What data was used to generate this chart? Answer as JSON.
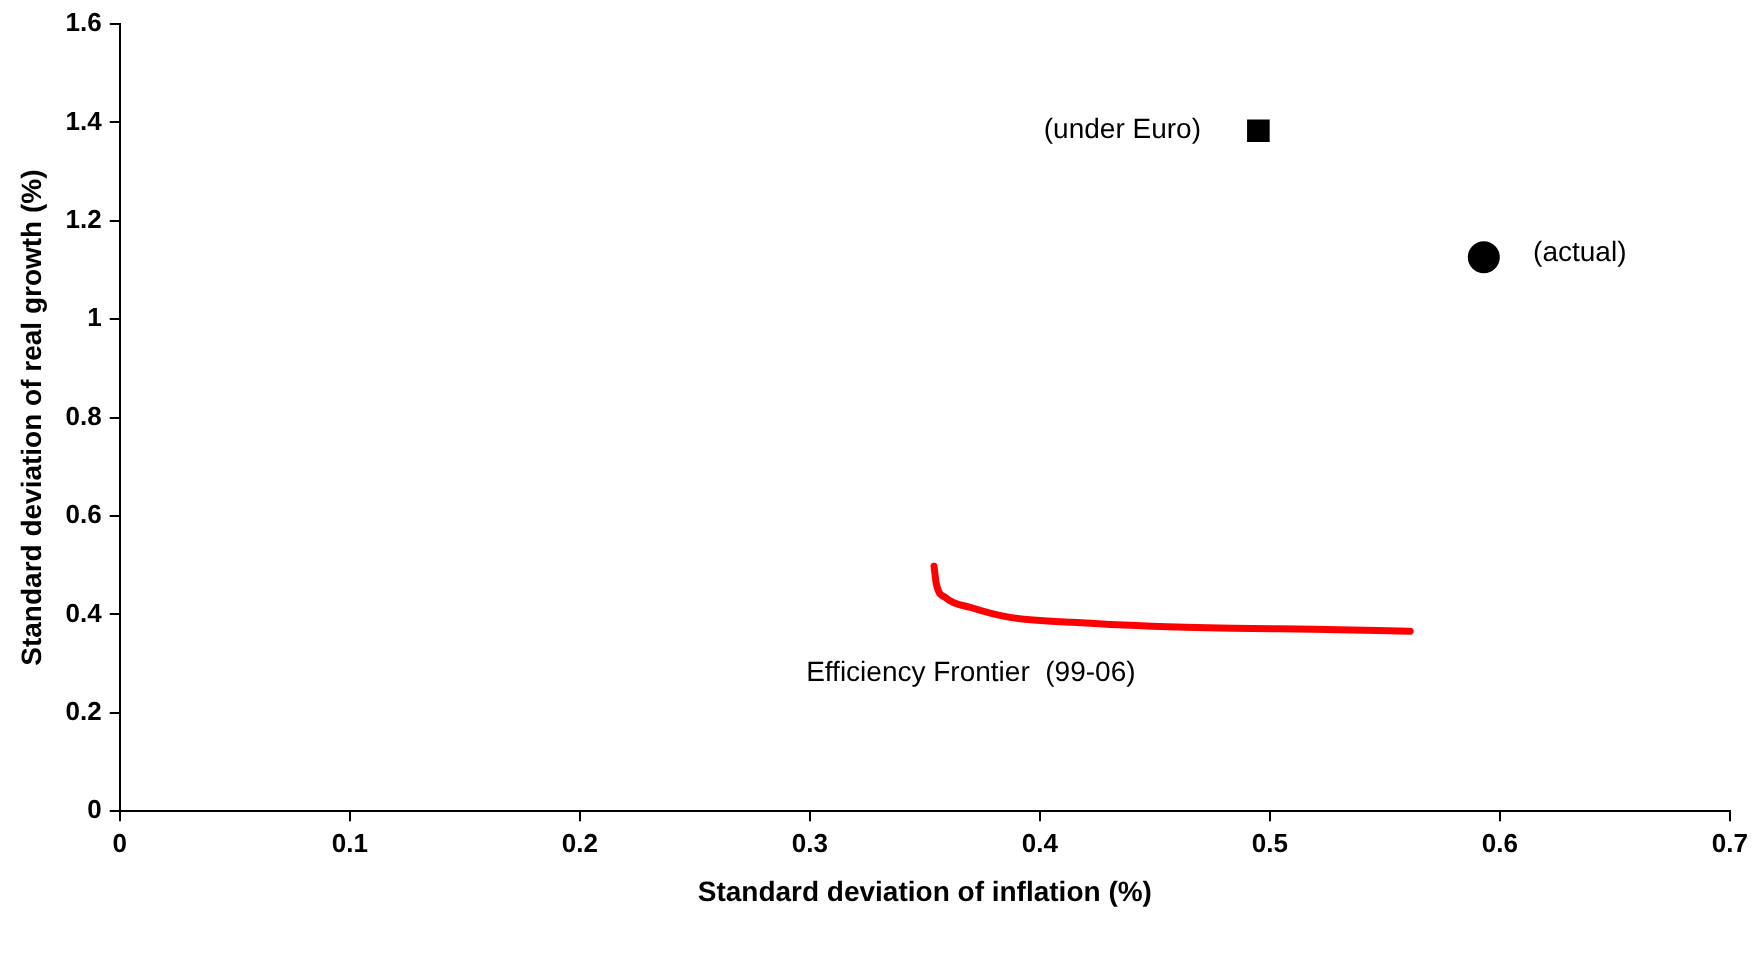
{
  "chart_data": {
    "type": "scatter",
    "xlabel": "Standard deviation of inflation (%)",
    "ylabel": "Standard deviation of real growth (%)",
    "xlim": [
      0,
      0.7
    ],
    "xticks": [
      0,
      0.1,
      0.2,
      0.3,
      0.4,
      0.5,
      0.6,
      0.7
    ],
    "ylim": [
      0,
      1.6
    ],
    "yticks": [
      0,
      0.2,
      0.4,
      0.6,
      0.8,
      1,
      1.2,
      1.4,
      1.6
    ],
    "grid": false,
    "legend": false,
    "series": [
      {
        "type": "line",
        "color": "#ff0000",
        "marker": "none",
        "line_style": "solid",
        "x": [
          0.354,
          0.355,
          0.359,
          0.37,
          0.387,
          0.414,
          0.449,
          0.484,
          0.519,
          0.561
        ],
        "values": [
          0.498,
          0.462,
          0.434,
          0.414,
          0.394,
          0.384,
          0.376,
          0.372,
          0.37,
          0.366
        ]
      },
      {
        "type": "scatter",
        "color": "#000000",
        "marker": "square",
        "x": [
          0.495
        ],
        "values": [
          1.383
        ]
      },
      {
        "type": "scatter",
        "color": "#000000",
        "marker": "circle",
        "x": [
          0.593
        ],
        "values": [
          1.126
        ]
      }
    ],
    "annotations": [
      {
        "text": "(under Euro)",
        "x": 0.495,
        "y": 1.383
      },
      {
        "text": "(actual)",
        "x": 0.593,
        "y": 1.126
      },
      {
        "text": "Efficiency Frontier  (99-06)",
        "x": 0.37,
        "y": 0.414
      }
    ]
  }
}
